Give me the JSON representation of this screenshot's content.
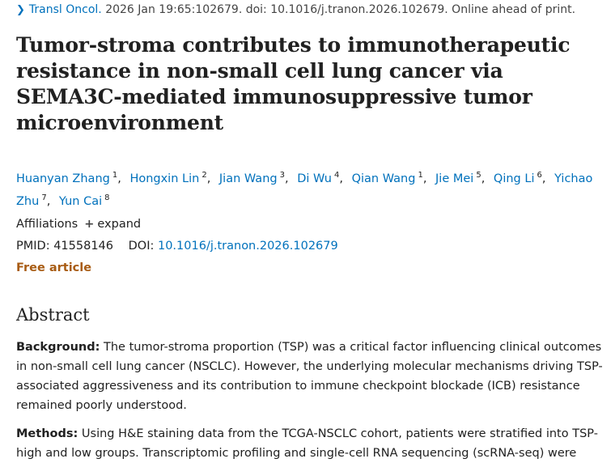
{
  "citation": {
    "journal": "Transl Oncol.",
    "details": " 2026 Jan 19:65:102679. doi: 10.1016/j.tranon.2026.102679. Online ahead of print.",
    "chevron_icon": "chevron-right-icon"
  },
  "title": "Tumor-stroma contributes to immunotherapeutic resistance in non-small cell lung cancer via SEMA3C-mediated immunosuppressive tumor microenvironment",
  "authors": [
    {
      "name": "Huanyan Zhang",
      "aff": "1"
    },
    {
      "name": "Hongxin Lin",
      "aff": "2"
    },
    {
      "name": "Jian Wang",
      "aff": "3"
    },
    {
      "name": "Di Wu",
      "aff": "4"
    },
    {
      "name": "Qian Wang",
      "aff": "1"
    },
    {
      "name": "Jie Mei",
      "aff": "5"
    },
    {
      "name": "Qing Li",
      "aff": "6"
    },
    {
      "name": "Yichao Zhu",
      "aff": "7"
    },
    {
      "name": "Yun Cai",
      "aff": "8"
    }
  ],
  "affiliations": {
    "label": "Affiliations",
    "expand_label": "expand",
    "plus_icon": "plus-icon"
  },
  "ids": {
    "pmid_label": "PMID:",
    "pmid": "41558146",
    "doi_label": "DOI:",
    "doi": "10.1016/j.tranon.2026.102679"
  },
  "free_article": "Free article",
  "abstract": {
    "heading": "Abstract",
    "background_label": "Background:",
    "background_text": " The tumor-stroma proportion (TSP) was a critical factor influencing clinical outcomes in non-small cell lung cancer (NSCLC). However, the underlying molecular mechanisms driving TSP-associated aggressiveness and its contribution to immune checkpoint blockade (ICB) resistance remained poorly understood.",
    "methods_label": "Methods:",
    "methods_text": " Using H&E staining data from the TCGA-NSCLC cohort, patients were stratified into TSP-high and low groups. Transcriptomic profiling and single-cell RNA sequencing (scRNA-seq) were"
  },
  "colors": {
    "link": "#0071bc",
    "free_article": "#a85c14",
    "text": "#212121"
  }
}
